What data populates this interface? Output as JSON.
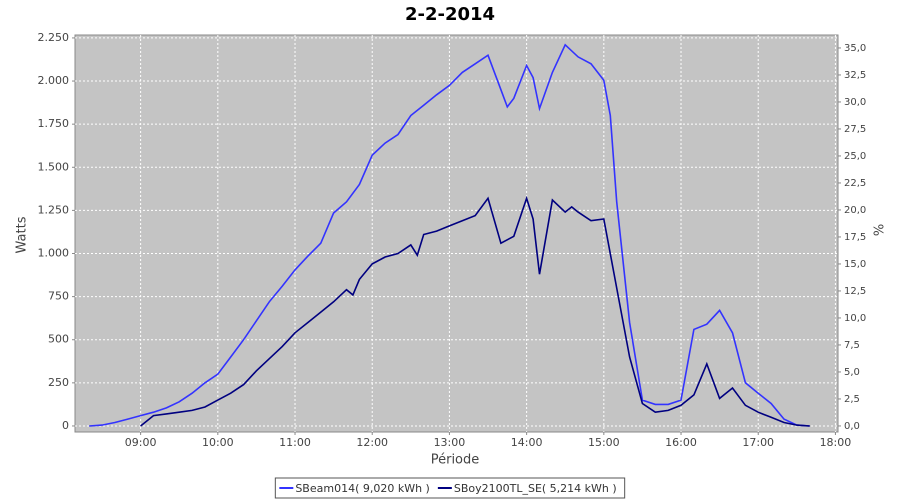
{
  "chart_data": {
    "type": "line",
    "title": "2-2-2014",
    "x_label": "Période",
    "y_label": "Watts",
    "y2_label": "%",
    "xlim": [
      "08:09",
      "18:02"
    ],
    "xticks": [
      "09:00",
      "10:00",
      "11:00",
      "12:00",
      "13:00",
      "14:00",
      "15:00",
      "16:00",
      "17:00",
      "18:00"
    ],
    "ylim": [
      -35,
      2267
    ],
    "yticks": [
      0,
      250,
      500,
      750,
      {
        "value": 1000,
        "label": "1.000"
      },
      {
        "value": 1250,
        "label": "1.250"
      },
      {
        "value": 1500,
        "label": "1.500"
      },
      {
        "value": 1750,
        "label": "1.750"
      },
      {
        "value": 2000,
        "label": "2.000"
      },
      {
        "value": 2250,
        "label": "2.250"
      }
    ],
    "y2lim": [
      -0.56,
      36.2
    ],
    "y2ticks": [
      {
        "value": 0,
        "label": "0,0"
      },
      {
        "value": 2.5,
        "label": "2,5"
      },
      {
        "value": 5,
        "label": "5,0"
      },
      {
        "value": 7.5,
        "label": "7,5"
      },
      {
        "value": 10,
        "label": "10,0"
      },
      {
        "value": 12.5,
        "label": "12,5"
      },
      {
        "value": 15,
        "label": "15,0"
      },
      {
        "value": 17.5,
        "label": "17,5"
      },
      {
        "value": 20,
        "label": "20,0"
      },
      {
        "value": 22.5,
        "label": "22,5"
      },
      {
        "value": 25,
        "label": "25,0"
      },
      {
        "value": 27.5,
        "label": "27,5"
      },
      {
        "value": 30,
        "label": "30,0"
      },
      {
        "value": 32.5,
        "label": "32,5"
      },
      {
        "value": 35,
        "label": "35,0"
      }
    ],
    "grid": true,
    "series": [
      {
        "name": "SBeam014( 9,020 kWh )",
        "color": "#3333ff",
        "x": [
          "08:20",
          "08:30",
          "08:40",
          "08:50",
          "09:00",
          "09:10",
          "09:20",
          "09:30",
          "09:40",
          "09:50",
          "10:00",
          "10:10",
          "10:20",
          "10:30",
          "10:40",
          "10:50",
          "11:00",
          "11:10",
          "11:20",
          "11:30",
          "11:40",
          "11:50",
          "12:00",
          "12:10",
          "12:20",
          "12:30",
          "12:40",
          "12:50",
          "13:00",
          "13:10",
          "13:20",
          "13:30",
          "13:40",
          "13:45",
          "13:50",
          "14:00",
          "14:05",
          "14:10",
          "14:20",
          "14:30",
          "14:40",
          "14:50",
          "15:00",
          "15:05",
          "15:10",
          "15:20",
          "15:30",
          "15:40",
          "15:50",
          "16:00",
          "16:10",
          "16:20",
          "16:30",
          "16:40",
          "16:50",
          "17:00",
          "17:10",
          "17:20",
          "17:30",
          "17:40"
        ],
        "values": [
          0,
          5,
          20,
          40,
          60,
          80,
          105,
          140,
          190,
          250,
          300,
          400,
          500,
          610,
          720,
          810,
          905,
          985,
          1060,
          1235,
          1300,
          1400,
          1570,
          1640,
          1690,
          1800,
          1860,
          1920,
          1975,
          2050,
          2100,
          2150,
          1950,
          1850,
          1900,
          2090,
          2020,
          1840,
          2050,
          2210,
          2140,
          2100,
          2005,
          1800,
          1300,
          600,
          150,
          125,
          125,
          150,
          560,
          590,
          670,
          540,
          250,
          190,
          130,
          40,
          5,
          0
        ]
      },
      {
        "name": "SBoy2100TL_SE( 5,214 kWh )",
        "color": "#000080",
        "x": [
          "09:00",
          "09:10",
          "09:20",
          "09:30",
          "09:40",
          "09:50",
          "10:00",
          "10:10",
          "10:20",
          "10:30",
          "10:40",
          "10:50",
          "11:00",
          "11:10",
          "11:20",
          "11:30",
          "11:40",
          "11:45",
          "11:50",
          "12:00",
          "12:10",
          "12:20",
          "12:30",
          "12:35",
          "12:40",
          "12:50",
          "13:00",
          "13:10",
          "13:20",
          "13:30",
          "13:40",
          "13:50",
          "14:00",
          "14:05",
          "14:10",
          "14:20",
          "14:30",
          "14:35",
          "14:40",
          "14:50",
          "15:00",
          "15:10",
          "15:20",
          "15:30",
          "15:40",
          "15:50",
          "16:00",
          "16:10",
          "16:20",
          "16:30",
          "16:40",
          "16:50",
          "17:00",
          "17:10",
          "17:20",
          "17:30",
          "17:40"
        ],
        "values": [
          0,
          60,
          70,
          80,
          90,
          110,
          150,
          190,
          240,
          320,
          390,
          460,
          540,
          600,
          660,
          720,
          790,
          760,
          850,
          940,
          980,
          1000,
          1050,
          990,
          1110,
          1130,
          1160,
          1190,
          1220,
          1320,
          1060,
          1100,
          1320,
          1200,
          880,
          1310,
          1240,
          1270,
          1240,
          1190,
          1200,
          800,
          400,
          130,
          80,
          90,
          120,
          180,
          360,
          160,
          220,
          120,
          80,
          50,
          20,
          5,
          0
        ]
      }
    ]
  }
}
